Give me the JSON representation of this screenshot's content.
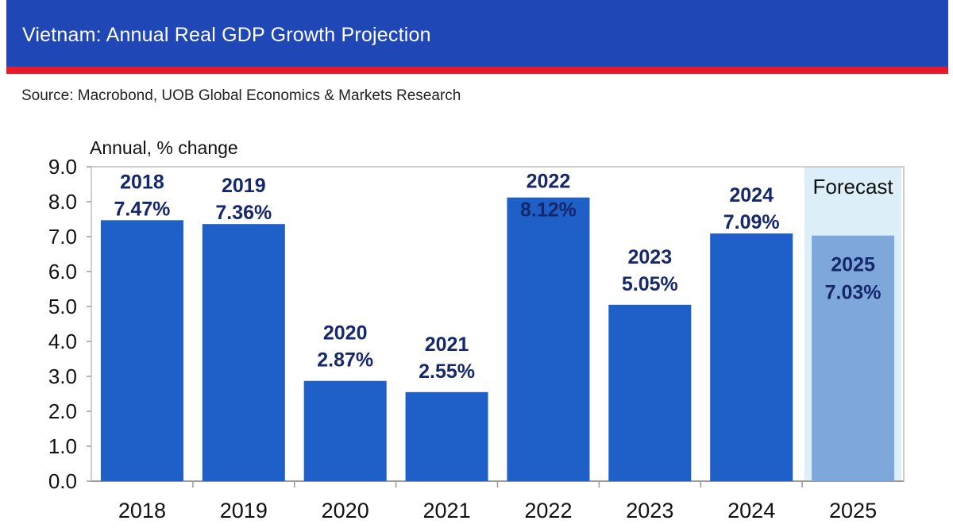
{
  "header": {
    "title": "Vietnam: Annual Real GDP Growth Projection",
    "source": "Source: Macrobond, UOB Global Economics & Markets Research"
  },
  "colors": {
    "banner": "#1f47b5",
    "rule": "#e8192c",
    "bar": "#1f5fc8",
    "forecast_bar": "#7ea8dc",
    "forecast_band": "#dceef8",
    "label": "#15286b"
  },
  "chart_data": {
    "type": "bar",
    "title": "",
    "ylabel": "Annual, % change",
    "xlabel": "",
    "categories": [
      "2018",
      "2019",
      "2020",
      "2021",
      "2022",
      "2023",
      "2024",
      "2025"
    ],
    "values": [
      7.47,
      7.36,
      2.87,
      2.55,
      8.12,
      5.05,
      7.09,
      7.03
    ],
    "bar_labels": [
      {
        "year": "2018",
        "value": "7.47%"
      },
      {
        "year": "2019",
        "value": "7.36%"
      },
      {
        "year": "2020",
        "value": "2.87%"
      },
      {
        "year": "2021",
        "value": "2.55%"
      },
      {
        "year": "2022",
        "value": "8.12%"
      },
      {
        "year": "2023",
        "value": "5.05%"
      },
      {
        "year": "2024",
        "value": "7.09%"
      },
      {
        "year": "2025",
        "value": "7.03%"
      }
    ],
    "forecast_categories": [
      "2025"
    ],
    "forecast_label": "Forecast",
    "ylim": [
      0,
      9
    ],
    "yticks": [
      "0.0",
      "1.0",
      "2.0",
      "3.0",
      "4.0",
      "5.0",
      "6.0",
      "7.0",
      "8.0",
      "9.0"
    ],
    "grid": false,
    "legend": "none"
  }
}
